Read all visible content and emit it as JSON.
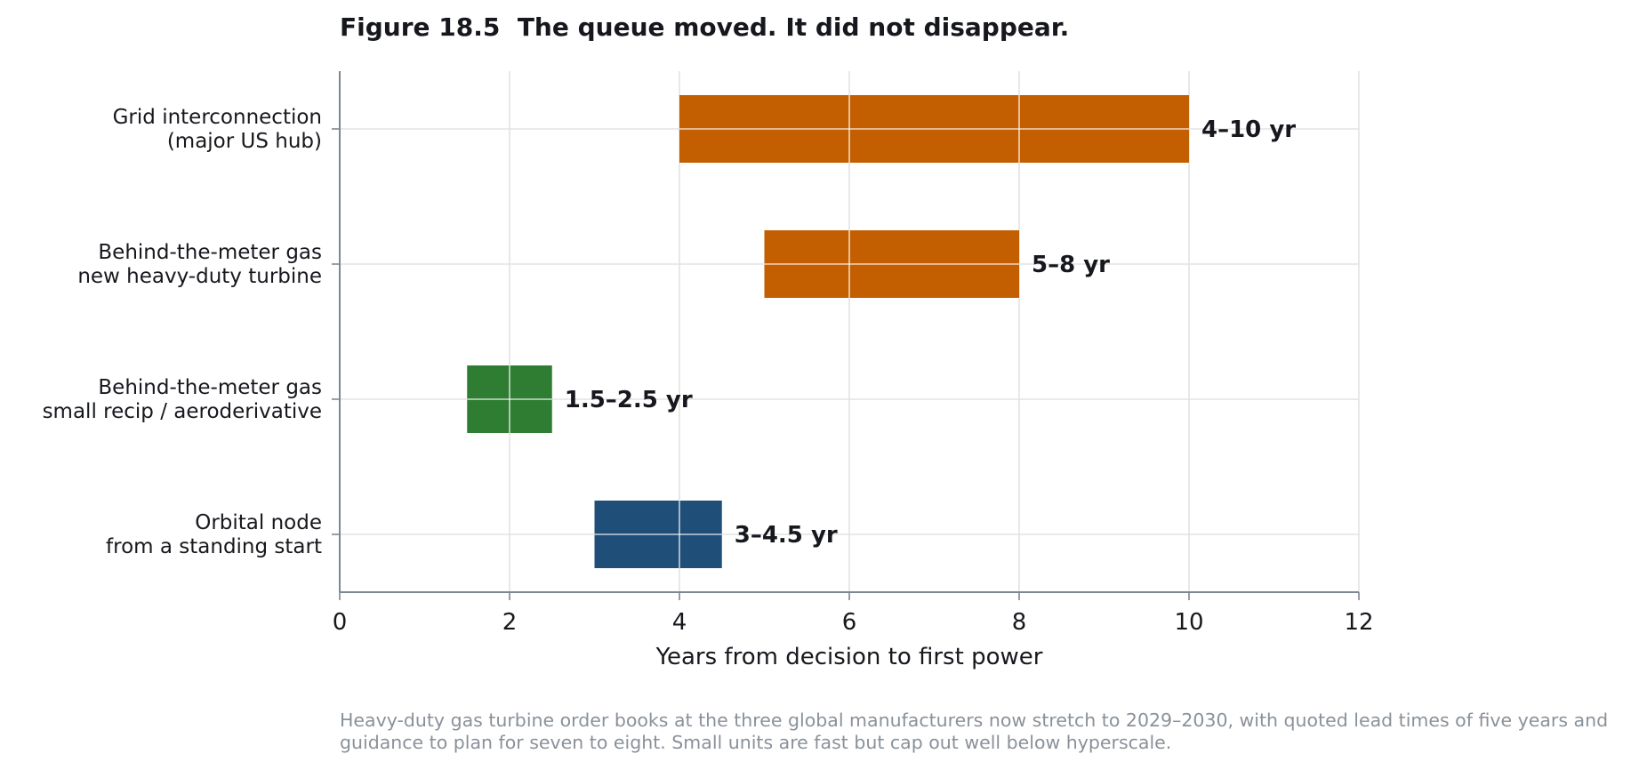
{
  "title": "Figure 18.5  The queue moved. It did not disappear.",
  "caption": "Heavy-duty gas turbine order books at the three global manufacturers now stretch to 2029–2030, with quoted lead times of five years and guidance to plan for seven to eight. Small units are fast but cap out well below hyperscale.",
  "colors": {
    "grid_orange": "#c35f00",
    "btm_green": "#2e7d32",
    "orbital_blue": "#1f4e79",
    "gridline": "#e3e3e3",
    "axis": "#7d8794",
    "caption_gray": "#8a9199"
  },
  "chart_data": {
    "type": "bar",
    "orientation": "horizontal-range",
    "xlabel": "Years from decision to first power",
    "xlim": [
      0,
      12
    ],
    "xticks": [
      0,
      2,
      4,
      6,
      8,
      10,
      12
    ],
    "grid": true,
    "bars": [
      {
        "label_lines": [
          "Grid interconnection",
          "(major US hub)"
        ],
        "start": 4,
        "end": 10,
        "value_label": "4–10 yr",
        "color": "#c35f00"
      },
      {
        "label_lines": [
          "Behind-the-meter gas",
          "new heavy-duty turbine"
        ],
        "start": 5,
        "end": 8,
        "value_label": "5–8 yr",
        "color": "#c35f00"
      },
      {
        "label_lines": [
          "Behind-the-meter gas",
          "small recip / aeroderivative"
        ],
        "start": 1.5,
        "end": 2.5,
        "value_label": "1.5–2.5 yr",
        "color": "#2e7d32"
      },
      {
        "label_lines": [
          "Orbital node",
          "from a standing start"
        ],
        "start": 3,
        "end": 4.5,
        "value_label": "3–4.5 yr",
        "color": "#1f4e79"
      }
    ]
  }
}
